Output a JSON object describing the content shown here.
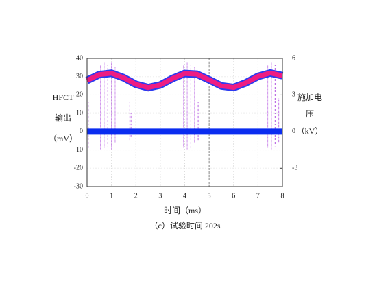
{
  "chart_data": {
    "type": "line",
    "y_label_lines": [
      "HFCT",
      "输出",
      "（mV）"
    ],
    "y2_label_lines": [
      "施加电",
      "压",
      "（kV）"
    ],
    "x_label": "时间（ms）",
    "caption": "（c）试验时间 202s",
    "xlim": [
      0,
      8
    ],
    "xticks": [
      0,
      1,
      2,
      3,
      4,
      5,
      6,
      7,
      8
    ],
    "ylim": [
      -30,
      40
    ],
    "yticks": [
      -30,
      -20,
      -10,
      0,
      10,
      20,
      30,
      40
    ],
    "y2lim": [
      -4.5,
      6
    ],
    "y2ticks": [
      -3,
      0,
      3,
      6
    ],
    "grid": true,
    "series": [
      {
        "color": "#0a2cf0",
        "x": [
          0,
          8
        ],
        "values": [
          0,
          0
        ]
      },
      {
        "color": "#ee1c82",
        "axis": "y2",
        "x": [
          0,
          0.5,
          1,
          1.5,
          2,
          2.5,
          3,
          3.5,
          4,
          4.5,
          5,
          5.5,
          6,
          6.5,
          7,
          7.5,
          8
        ],
        "values": [
          4.19,
          4.67,
          4.78,
          4.41,
          3.87,
          3.6,
          3.82,
          4.35,
          4.76,
          4.7,
          4.24,
          3.74,
          3.61,
          3.99,
          4.52,
          4.8,
          4.58
        ]
      }
    ],
    "pulses": {
      "color": "#b04ee0",
      "x": [
        0.05,
        0.55,
        0.7,
        0.85,
        1.0,
        1.15,
        1.75,
        1.8,
        3.95,
        4.1,
        4.25,
        4.4,
        4.55,
        7.4,
        7.55,
        7.7,
        7.85
      ],
      "high": [
        16,
        36,
        38,
        37,
        38,
        35,
        16,
        10,
        36,
        38,
        37,
        35,
        16,
        36,
        38,
        37,
        18
      ],
      "low": [
        -9,
        -10,
        -9,
        -8,
        -10,
        -6,
        -5,
        -3,
        -9,
        -10,
        -9,
        -6,
        -5,
        -9,
        -10,
        -8,
        -6
      ]
    }
  }
}
